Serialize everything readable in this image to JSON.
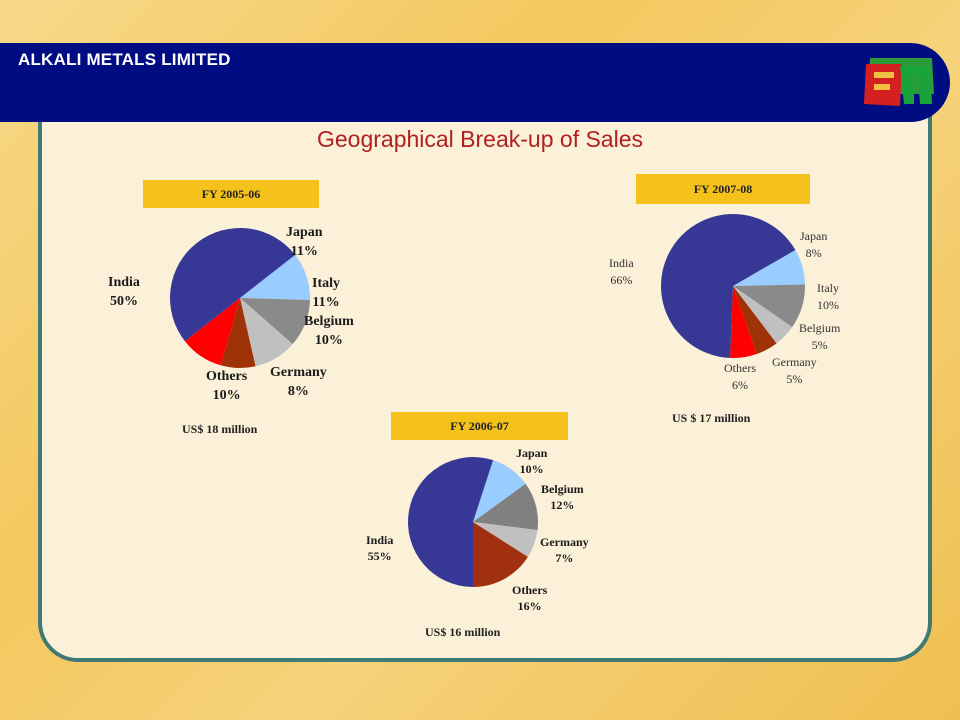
{
  "header": {
    "company": "ALKALI METALS LIMITED"
  },
  "page_title": "Geographical Break-up of Sales",
  "colors": {
    "India": "#373896",
    "Japan": "#99ccff",
    "Italy": "#8a8a8a",
    "Belgium": "#c0c0c0",
    "Germany": "#9d3307",
    "Others": "#ff0000",
    "Belgium_2006_07": "#808080",
    "Germany_2006_07": "#c0c0c0",
    "Others_2006_07": "#a13010",
    "header_bg": "#000c82",
    "title": "#b02020",
    "fy_box": "#f5c21b"
  },
  "chart_data": [
    {
      "type": "pie",
      "title": "FY 2005-06",
      "total": "US$ 18 million",
      "slices": [
        {
          "label": "Japan",
          "value": 11,
          "text": "11%"
        },
        {
          "label": "Italy",
          "value": 11,
          "text": "11%"
        },
        {
          "label": "Belgium",
          "value": 10,
          "text": "10%"
        },
        {
          "label": "Germany",
          "value": 8,
          "text": "8%"
        },
        {
          "label": "Others",
          "value": 10,
          "text": "10%"
        },
        {
          "label": "India",
          "value": 50,
          "text": "50%"
        }
      ]
    },
    {
      "type": "pie",
      "title": "FY 2006-07",
      "total": "US$ 16 million",
      "slices": [
        {
          "label": "Japan",
          "value": 10,
          "text": "10%"
        },
        {
          "label": "Belgium",
          "value": 12,
          "text": "12%"
        },
        {
          "label": "Germany",
          "value": 7,
          "text": "7%"
        },
        {
          "label": "Others",
          "value": 16,
          "text": "16%"
        },
        {
          "label": "India",
          "value": 55,
          "text": "55%"
        }
      ]
    },
    {
      "type": "pie",
      "title": "FY 2007-08",
      "total": "US $ 17 million",
      "slices": [
        {
          "label": "Japan",
          "value": 8,
          "text": "8%"
        },
        {
          "label": "Italy",
          "value": 10,
          "text": "10%"
        },
        {
          "label": "Belgium",
          "value": 5,
          "text": "5%"
        },
        {
          "label": "Germany",
          "value": 5,
          "text": "5%"
        },
        {
          "label": "Others",
          "value": 6,
          "text": "6%"
        },
        {
          "label": "India",
          "value": 66,
          "text": "66%"
        }
      ]
    }
  ]
}
